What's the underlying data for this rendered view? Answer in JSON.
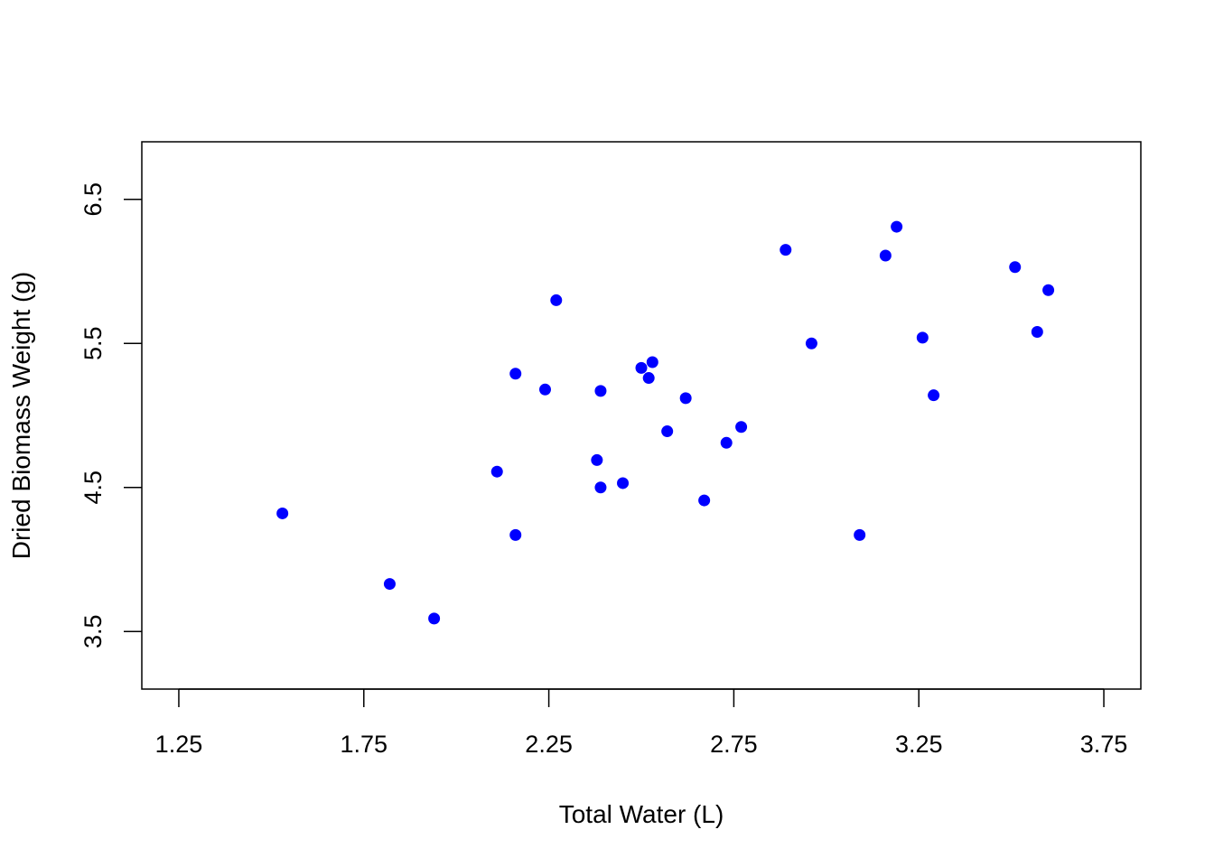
{
  "chart_data": {
    "type": "scatter",
    "title": "",
    "xlabel": "Total Water (L)",
    "ylabel": "Dried Biomass Weight (g)",
    "xlim": [
      1.15,
      3.85
    ],
    "ylim": [
      3.1,
      6.9
    ],
    "xticks": [
      1.25,
      1.75,
      2.25,
      2.75,
      3.25,
      3.75
    ],
    "xtick_labels": [
      "1.25",
      "1.75",
      "2.25",
      "2.75",
      "3.25",
      "3.75"
    ],
    "yticks": [
      3.5,
      4.5,
      5.5,
      6.5
    ],
    "ytick_labels": [
      "3.5",
      "4.5",
      "5.5",
      "6.5"
    ],
    "grid": false,
    "point_color": "#0000ff",
    "points": [
      {
        "x": 1.53,
        "y": 4.32
      },
      {
        "x": 1.82,
        "y": 3.83
      },
      {
        "x": 1.94,
        "y": 3.59
      },
      {
        "x": 2.11,
        "y": 4.61
      },
      {
        "x": 2.16,
        "y": 5.29
      },
      {
        "x": 2.16,
        "y": 4.17
      },
      {
        "x": 2.24,
        "y": 5.18
      },
      {
        "x": 2.27,
        "y": 5.8
      },
      {
        "x": 2.38,
        "y": 4.69
      },
      {
        "x": 2.39,
        "y": 4.5
      },
      {
        "x": 2.39,
        "y": 5.17
      },
      {
        "x": 2.45,
        "y": 4.53
      },
      {
        "x": 2.5,
        "y": 5.33
      },
      {
        "x": 2.52,
        "y": 5.26
      },
      {
        "x": 2.53,
        "y": 5.37
      },
      {
        "x": 2.57,
        "y": 4.89
      },
      {
        "x": 2.62,
        "y": 5.12
      },
      {
        "x": 2.67,
        "y": 4.41
      },
      {
        "x": 2.73,
        "y": 4.81
      },
      {
        "x": 2.77,
        "y": 4.92
      },
      {
        "x": 2.89,
        "y": 6.15
      },
      {
        "x": 2.96,
        "y": 5.5
      },
      {
        "x": 3.09,
        "y": 4.17
      },
      {
        "x": 3.16,
        "y": 6.11
      },
      {
        "x": 3.19,
        "y": 6.31
      },
      {
        "x": 3.26,
        "y": 5.54
      },
      {
        "x": 3.29,
        "y": 5.14
      },
      {
        "x": 3.51,
        "y": 6.03
      },
      {
        "x": 3.57,
        "y": 5.58
      },
      {
        "x": 3.6,
        "y": 5.87
      }
    ]
  }
}
